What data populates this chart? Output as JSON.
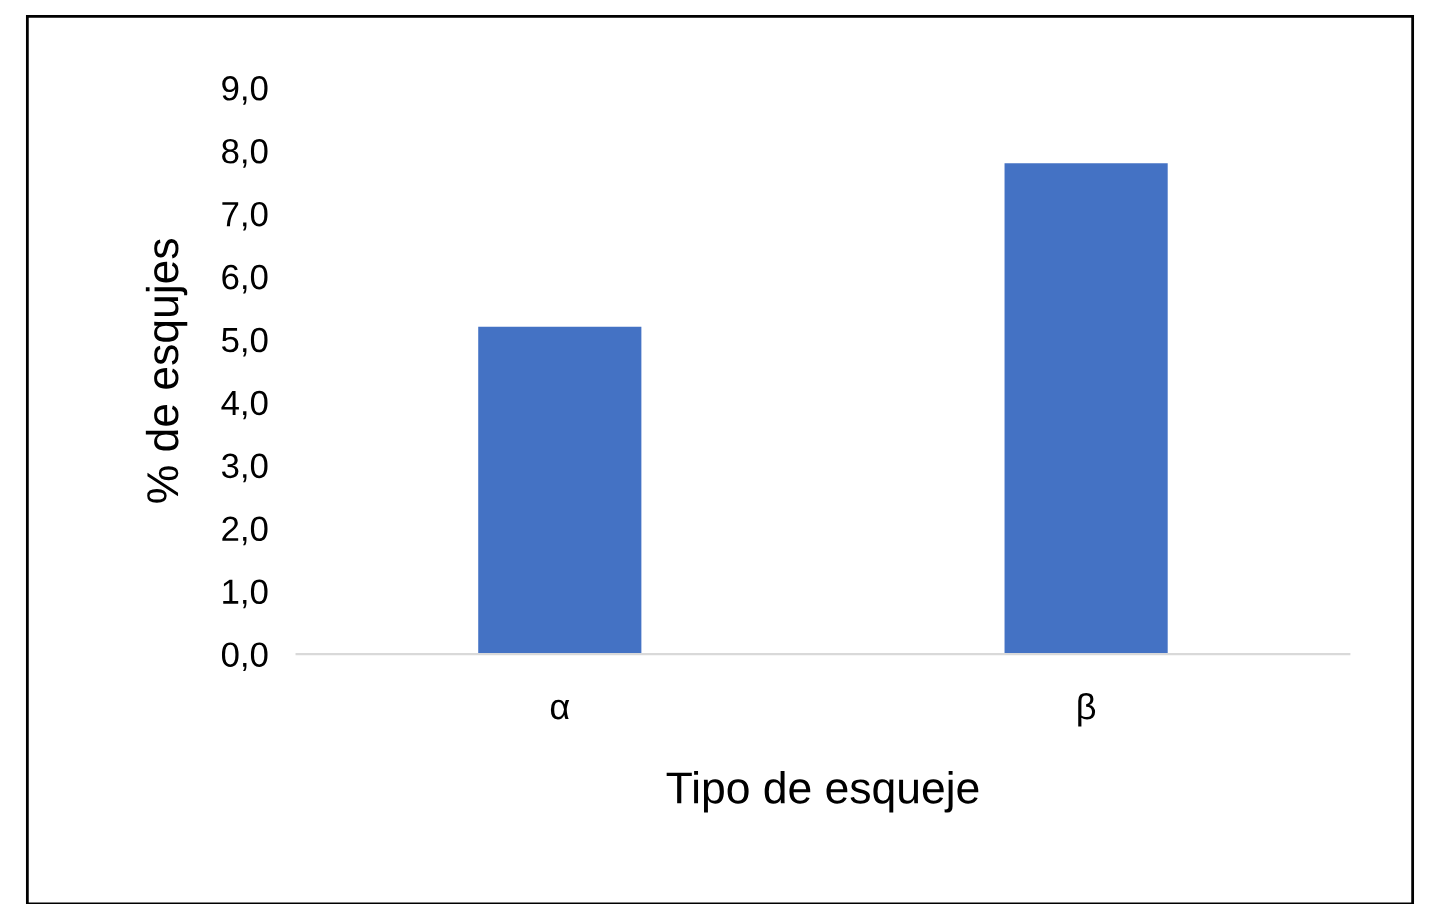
{
  "chart_data": {
    "type": "bar",
    "xlabel": "Tipo de esqueje",
    "ylabel": "% de esqujes",
    "categories": [
      "α",
      "β"
    ],
    "values": [
      5.2,
      7.8
    ],
    "color": "#4472c4",
    "ylim": [
      0,
      9
    ],
    "yticks": [
      {
        "value": 0,
        "label": "0,0"
      },
      {
        "value": 1,
        "label": "1,0"
      },
      {
        "value": 2,
        "label": "2,0"
      },
      {
        "value": 3,
        "label": "3,0"
      },
      {
        "value": 4,
        "label": "4,0"
      },
      {
        "value": 5,
        "label": "5,0"
      },
      {
        "value": 6,
        "label": "6,0"
      },
      {
        "value": 7,
        "label": "7,0"
      },
      {
        "value": 8,
        "label": "8,0"
      },
      {
        "value": 9,
        "label": "9,0"
      }
    ],
    "grid": false
  }
}
